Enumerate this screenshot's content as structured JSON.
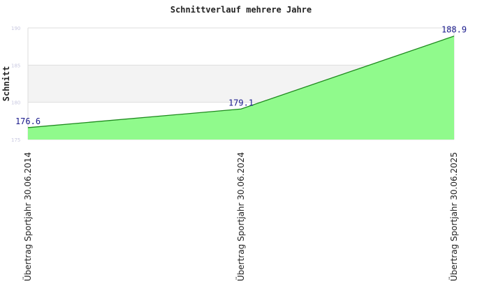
{
  "chart_data": {
    "type": "area",
    "title": "Schnittverlauf mehrere Jahre",
    "ylabel": "Schnitt",
    "xlabel": "",
    "ylim": [
      175,
      190
    ],
    "yticks": [
      "175",
      "180",
      "185",
      "190"
    ],
    "categories": [
      "Übertrag Sportjahr 30.06.2014",
      "Übertrag Sportjahr 30.06.2024",
      "Übertrag Sportjahr 30.06.2025"
    ],
    "values": [
      176.6,
      179.1,
      188.9
    ],
    "data_labels": [
      "176.6",
      "179.1",
      "188.9"
    ],
    "colors": {
      "fill": "#90fa8c",
      "line": "#1e8a1e",
      "band": "#f3f3f3",
      "grid": "#dddddd",
      "label": "#1a1a8c"
    }
  }
}
